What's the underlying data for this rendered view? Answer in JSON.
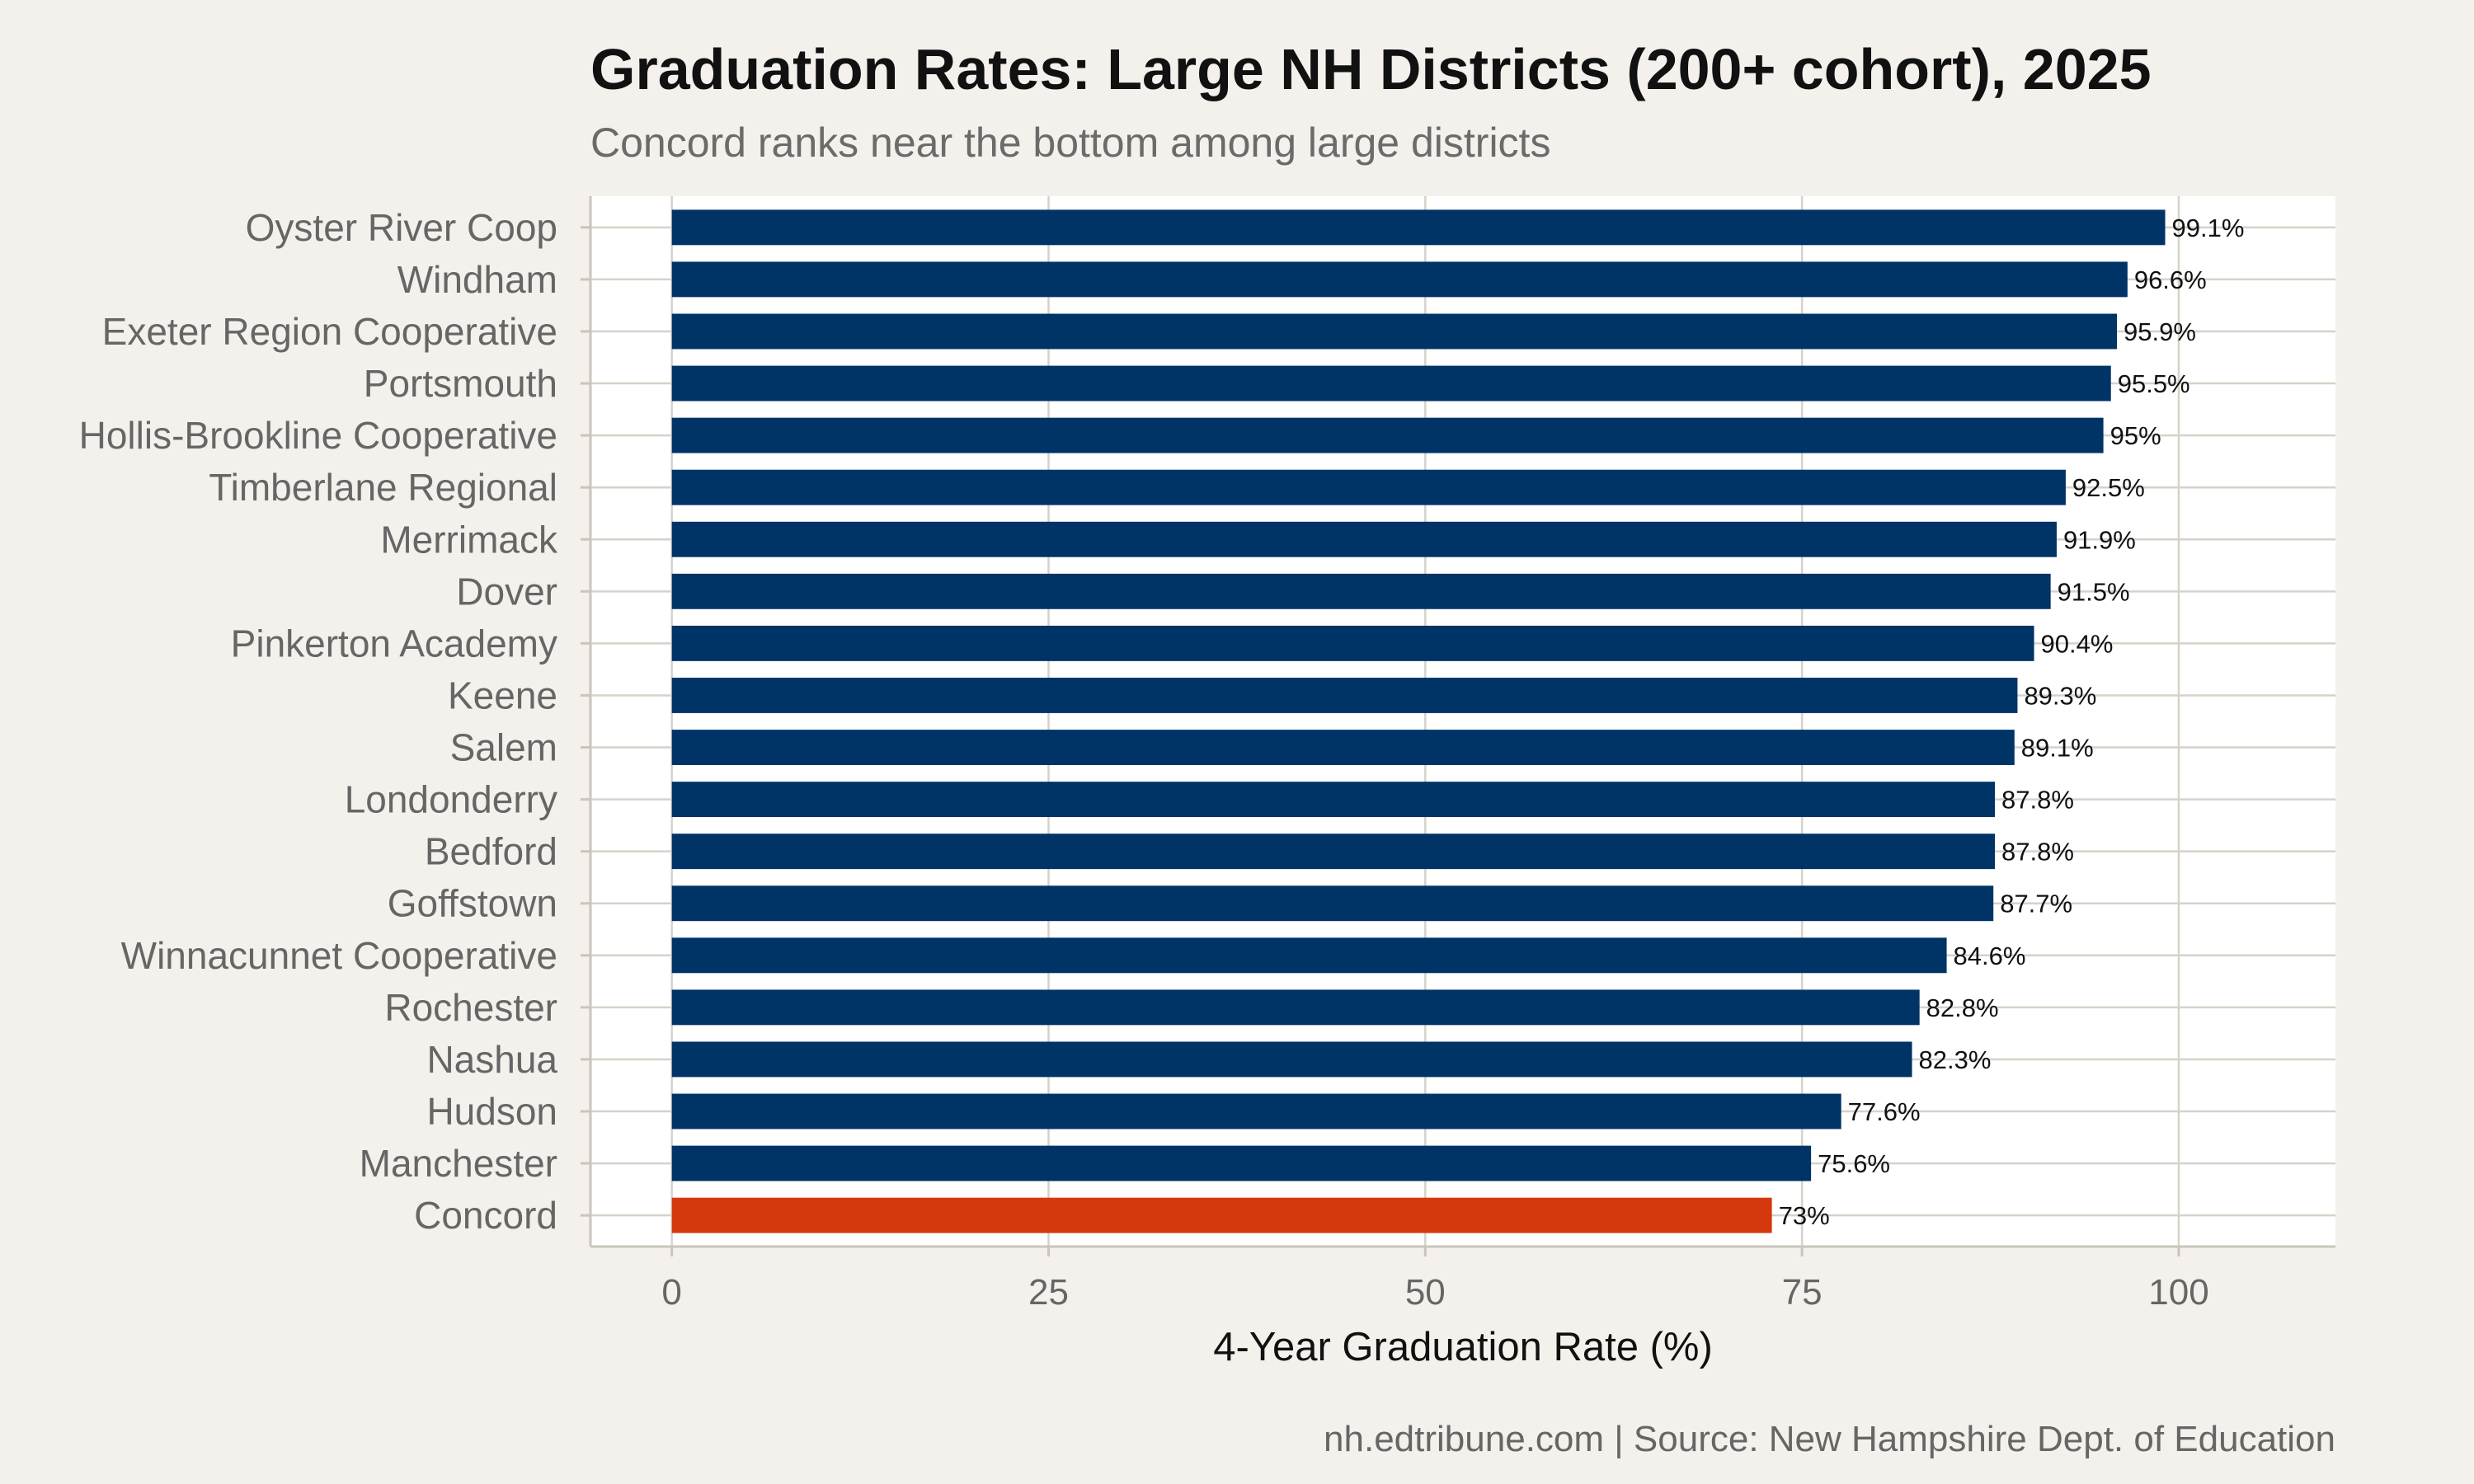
{
  "chart_data": {
    "type": "bar",
    "orientation": "horizontal",
    "title": "Graduation Rates: Large NH Districts (200+ cohort), 2025",
    "subtitle": "Concord ranks near the bottom among large districts",
    "xlabel": "4-Year Graduation Rate (%)",
    "ylabel": "",
    "caption": "nh.edtribune.com | Source: New Hampshire Dept. of Education",
    "xlim": [
      -5.4,
      110.4
    ],
    "x_ticks": [
      0,
      25,
      50,
      75,
      100
    ],
    "x_tick_labels": [
      "0",
      "25",
      "50",
      "75",
      "100"
    ],
    "grid": true,
    "legend": "none",
    "categories": [
      "Oyster River Coop",
      "Windham",
      "Exeter Region Cooperative",
      "Portsmouth",
      "Hollis-Brookline Cooperative",
      "Timberlane Regional",
      "Merrimack",
      "Dover",
      "Pinkerton Academy",
      "Keene",
      "Salem",
      "Londonderry",
      "Bedford",
      "Goffstown",
      "Winnacunnet Cooperative",
      "Rochester",
      "Nashua",
      "Hudson",
      "Manchester",
      "Concord"
    ],
    "values": [
      99.1,
      96.6,
      95.9,
      95.5,
      95,
      92.5,
      91.9,
      91.5,
      90.4,
      89.3,
      89.1,
      87.8,
      87.8,
      87.7,
      84.6,
      82.8,
      82.3,
      77.6,
      75.6,
      73
    ],
    "value_labels": [
      "99.1%",
      "96.6%",
      "95.9%",
      "95.5%",
      "95%",
      "92.5%",
      "91.9%",
      "91.5%",
      "90.4%",
      "89.3%",
      "89.1%",
      "87.8%",
      "87.8%",
      "87.7%",
      "84.6%",
      "82.8%",
      "82.3%",
      "77.6%",
      "75.6%",
      "73%"
    ],
    "highlight": [
      "Concord"
    ],
    "colors": {
      "background": "#f4f1ec",
      "panel": "#ffffff",
      "bar": "#003366",
      "highlight": "#d4380d",
      "grid": "#d6d2c9",
      "axis": "#c9c5bc",
      "title": "#111111",
      "subtitle": "#6b6b6b",
      "tick_label": "#666666",
      "value_label": "#111111",
      "axis_title": "#111111",
      "caption": "#666666"
    }
  }
}
